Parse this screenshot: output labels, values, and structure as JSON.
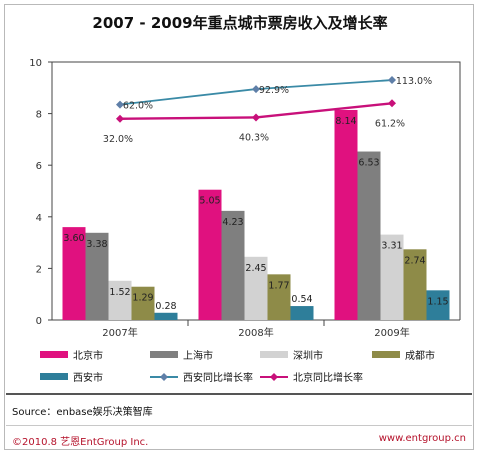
{
  "chart_data": {
    "type": "bar",
    "title": "2007 - 2009年重点城市票房收入及增长率",
    "categories": [
      "2007年",
      "2008年",
      "2009年"
    ],
    "ylim": [
      0,
      10
    ],
    "yticks": [
      "0",
      "2",
      "4",
      "6",
      "8",
      "10"
    ],
    "grid": false,
    "legend_position": "bottom",
    "series": [
      {
        "name": "北京市",
        "color": "#e0117f",
        "values": [
          3.6,
          5.05,
          8.14
        ],
        "labels": [
          "3.60",
          "5.05",
          "8.14"
        ]
      },
      {
        "name": "上海市",
        "color": "#7f7f7f",
        "values": [
          3.38,
          4.23,
          6.53
        ],
        "labels": [
          "3.38",
          "4.23",
          "6.53"
        ]
      },
      {
        "name": "深圳市",
        "color": "#d2d2d2",
        "values": [
          1.52,
          2.45,
          3.31
        ],
        "labels": [
          "1.52",
          "2.45",
          "3.31"
        ]
      },
      {
        "name": "成都市",
        "color": "#8e8b48",
        "values": [
          1.29,
          1.77,
          2.74
        ],
        "labels": [
          "1.29",
          "1.77",
          "2.74"
        ]
      },
      {
        "name": "西安市",
        "color": "#2e7e9a",
        "values": [
          0.28,
          0.54,
          1.15
        ],
        "labels": [
          "0.28",
          "0.54",
          "1.15"
        ]
      }
    ],
    "line_series": [
      {
        "name": "西安同比增长率",
        "color": "#3a8aa6",
        "marker_color": "#5f7fa8",
        "y_positions": [
          8.35,
          8.95,
          9.3
        ],
        "labels": [
          "62.0%",
          "92.9%",
          "113.0%"
        ]
      },
      {
        "name": "北京同比增长率",
        "color": "#c8107a",
        "marker_color": "#c8107a",
        "y_positions": [
          7.8,
          7.85,
          8.4
        ],
        "labels": [
          "32.0%",
          "40.3%",
          "61.2%"
        ]
      }
    ]
  },
  "source": "Source：enbase娱乐决策智库",
  "footer": {
    "copyright": "©2010.8  艺恩EntGroup Inc.",
    "website": "www.entgroup.cn"
  }
}
